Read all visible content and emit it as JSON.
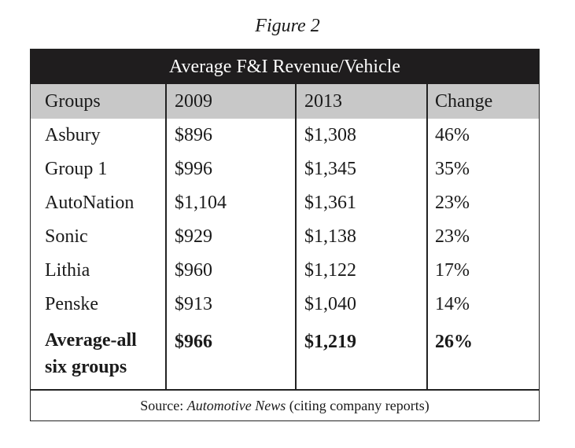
{
  "figure_label": "Figure 2",
  "chart_data": {
    "type": "table",
    "title": "Average F&I Revenue/Vehicle",
    "columns": [
      "Groups",
      "2009",
      "2013",
      "Change"
    ],
    "rows": [
      {
        "group": "Asbury",
        "y2009": "$896",
        "y2013": "$1,308",
        "change": "46%"
      },
      {
        "group": "Group 1",
        "y2009": "$996",
        "y2013": "$1,345",
        "change": "35%"
      },
      {
        "group": "AutoNation",
        "y2009": "$1,104",
        "y2013": "$1,361",
        "change": "23%"
      },
      {
        "group": "Sonic",
        "y2009": "$929",
        "y2013": "$1,138",
        "change": "23%"
      },
      {
        "group": "Lithia",
        "y2009": "$960",
        "y2013": "$1,122",
        "change": "17%"
      },
      {
        "group": "Penske",
        "y2009": "$913",
        "y2013": "$1,040",
        "change": "14%"
      }
    ],
    "average_row": {
      "group": "Average-all six groups",
      "y2009": "$966",
      "y2013": "$1,219",
      "change": "26%"
    },
    "source_prefix": "Source: ",
    "source_publication": "Automotive News",
    "source_suffix": " (citing company reports)"
  },
  "colors": {
    "title_bar": "#1f1d1e",
    "header_row": "#c8c8c8"
  }
}
